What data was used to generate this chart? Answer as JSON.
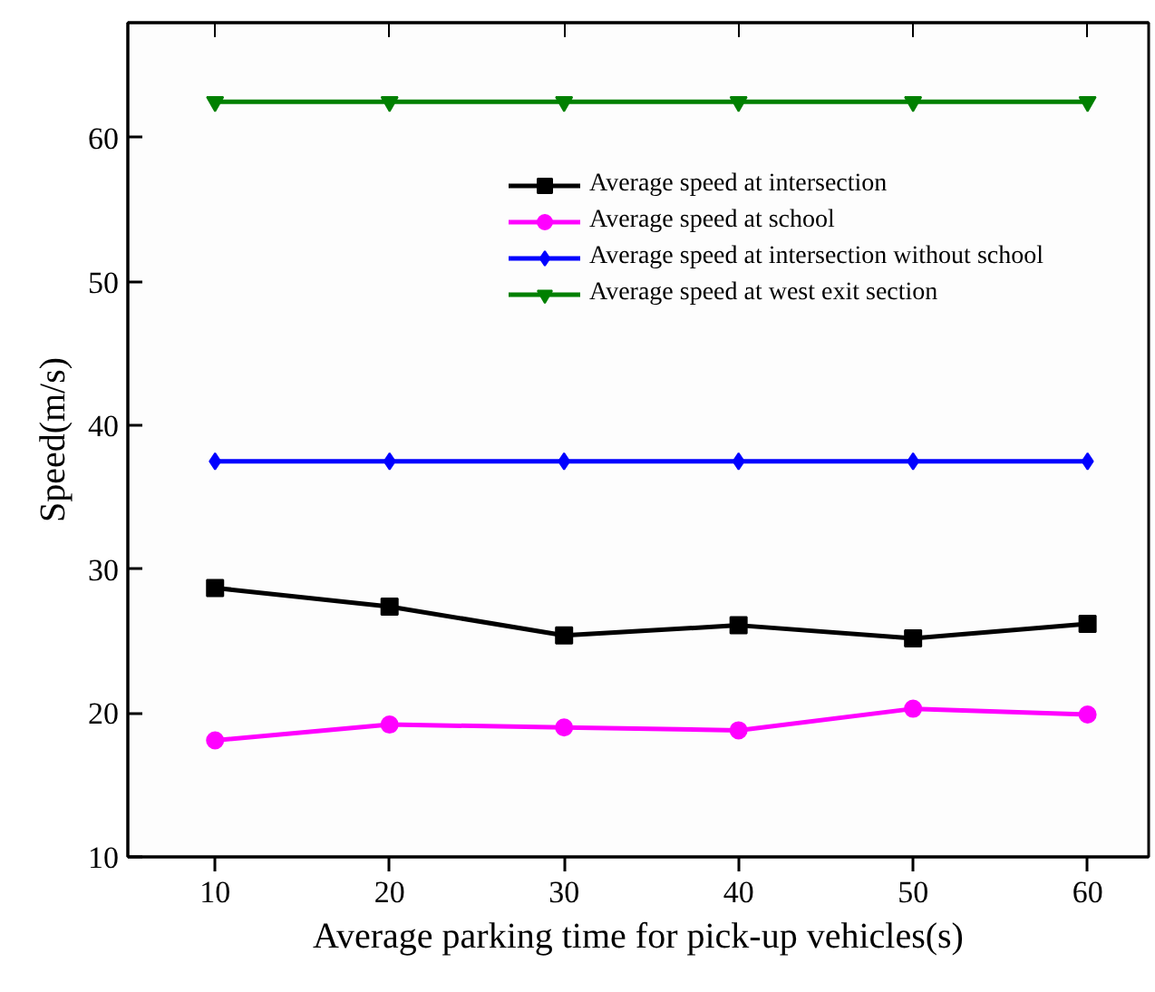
{
  "chart_data": {
    "type": "line",
    "xlabel": "Average parking time for pick-up vehicles(s)",
    "ylabel": "Speed(m/s)",
    "x": [
      10,
      20,
      30,
      40,
      50,
      60
    ],
    "series": [
      {
        "name": "Average speed at intersection",
        "color": "#000000",
        "marker": "square",
        "values": [
          28.7,
          27.4,
          25.4,
          26.1,
          25.2,
          26.2
        ]
      },
      {
        "name": "Average speed at school",
        "color": "#ff00ff",
        "marker": "circle",
        "values": [
          18.1,
          19.2,
          19.0,
          18.8,
          20.3,
          19.9
        ]
      },
      {
        "name": "Average speed at intersection without school",
        "color": "#0000ff",
        "marker": "diamond",
        "values": [
          37.5,
          37.5,
          37.5,
          37.5,
          37.5,
          37.5
        ]
      },
      {
        "name": "Average speed at west exit section",
        "color": "#008000",
        "marker": "triangle",
        "values": [
          62.5,
          62.5,
          62.5,
          62.5,
          62.5,
          62.5
        ]
      }
    ],
    "xlim": [
      5,
      63.5
    ],
    "ylim": [
      10,
      68
    ],
    "xticks": [
      10,
      20,
      30,
      40,
      50,
      60
    ],
    "yticks": [
      10,
      20,
      30,
      40,
      50,
      60
    ],
    "grid": false,
    "legend": "top right",
    "line_style": "solid"
  }
}
